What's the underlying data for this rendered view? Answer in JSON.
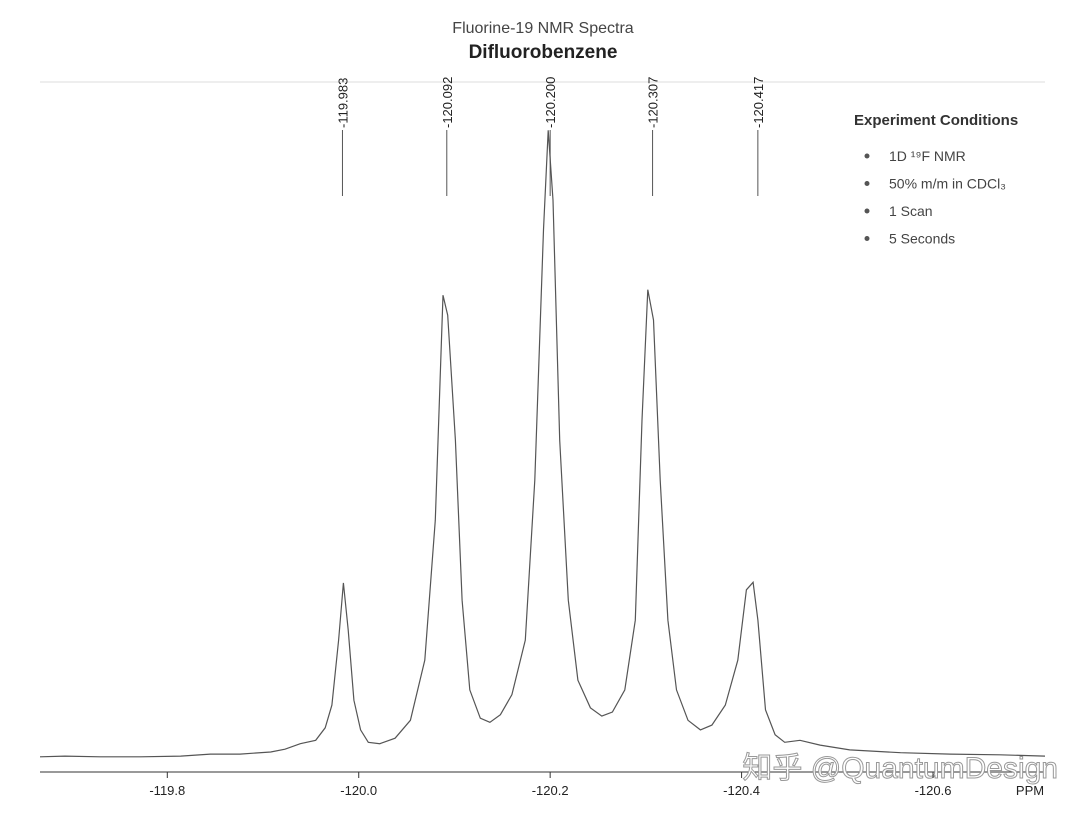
{
  "chart_data": {
    "type": "line",
    "title": "Fluorine-19 NMR Spectra",
    "subtitle": "Difluorobenzene",
    "x_label": "PPM",
    "xlim": [
      -119.667,
      -120.717
    ],
    "ylim": [
      0,
      100
    ],
    "xticks": [
      -119.8,
      {
        "value": -120.0,
        "label": "-120.0"
      },
      -120.2,
      -120.4,
      -120.6
    ],
    "peaks": [
      -119.983,
      -120.092,
      {
        "value": -120.2,
        "label": "-120.200"
      },
      -120.307,
      -120.417
    ],
    "series": [
      {
        "color": "#555555",
        "x": [
          -119.667,
          -119.693,
          -119.73,
          -119.772,
          -119.814,
          -119.845,
          -119.876,
          -119.908,
          -119.923,
          -119.939,
          -119.955,
          -119.965,
          -119.972,
          -119.979,
          -119.984,
          -119.989,
          -119.995,
          -120.002,
          -120.01,
          -120.022,
          -120.038,
          -120.054,
          -120.069,
          -120.08,
          -120.088,
          -120.093,
          -120.101,
          -120.108,
          -120.116,
          -120.127,
          -120.137,
          -120.148,
          -120.16,
          -120.174,
          -120.184,
          -120.193,
          -120.198,
          -120.203,
          -120.21,
          -120.219,
          -120.229,
          -120.242,
          -120.254,
          -120.265,
          -120.278,
          -120.289,
          -120.296,
          -120.302,
          -120.308,
          -120.315,
          -120.323,
          -120.332,
          -120.344,
          -120.357,
          -120.369,
          -120.383,
          -120.396,
          -120.405,
          -120.412,
          -120.417,
          -120.425,
          -120.435,
          -120.445,
          -120.461,
          -120.482,
          -120.513,
          -120.566,
          -120.618,
          -120.67,
          -120.717
        ],
        "values": [
          2.2,
          2.3,
          2.2,
          2.2,
          2.3,
          2.6,
          2.6,
          2.9,
          3.3,
          4.1,
          4.6,
          6.4,
          9.7,
          19.1,
          27.4,
          20.6,
          10.4,
          6.1,
          4.3,
          4.1,
          4.9,
          7.5,
          16.2,
          36.5,
          69.1,
          66.2,
          48.1,
          24.9,
          11.9,
          7.8,
          7.2,
          8.3,
          11.2,
          19.1,
          42.3,
          78.6,
          93.0,
          82.9,
          48.1,
          24.9,
          13.3,
          9.3,
          8.1,
          8.7,
          11.9,
          22.0,
          51.0,
          69.9,
          65.5,
          42.3,
          22.0,
          11.9,
          7.5,
          6.1,
          6.8,
          9.7,
          16.2,
          26.4,
          27.5,
          22.0,
          9.0,
          5.4,
          4.3,
          4.6,
          3.9,
          3.2,
          2.8,
          2.6,
          2.5,
          2.3
        ]
      }
    ],
    "conditions_title": "Experiment Conditions",
    "conditions": [
      "1D ¹⁹F NMR",
      "50% m/m in CDCl₃",
      "1 Scan",
      "5 Seconds"
    ],
    "watermark": "知乎 @QuantumDesign"
  }
}
